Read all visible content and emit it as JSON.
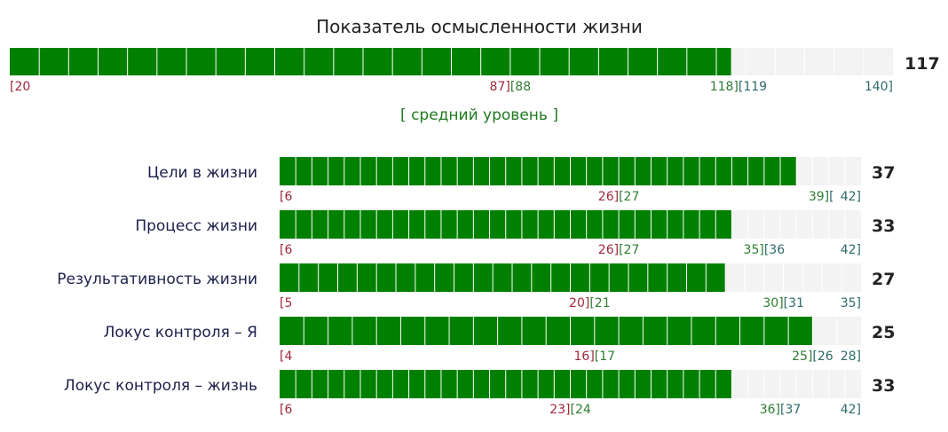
{
  "chart_data": {
    "type": "bar",
    "title": "Показатель осмысленности жизни",
    "colors": {
      "fill": "#008000",
      "track": "#f3f3f3",
      "low_tick": "#a0283c",
      "mid_tick": "#2e7d32",
      "high_tick": "#2e6b6b",
      "level_text": "#1f7a1f"
    },
    "total": {
      "value": 117,
      "min": 20,
      "max": 140,
      "ticks": [
        "[20",
        "87][88",
        "118][119",
        "140]"
      ],
      "level": "[ средний уровень ]"
    },
    "categories": [
      "Цели в жизни",
      "Процесс жизни",
      "Результативность жизни",
      "Локус контроля – Я",
      "Локус контроля – жизнь"
    ],
    "values": [
      37,
      33,
      27,
      25,
      33
    ],
    "scales": [
      {
        "min": 6,
        "max": 42,
        "ticks": [
          "[6",
          "26][27",
          "39][",
          "42]"
        ]
      },
      {
        "min": 6,
        "max": 42,
        "ticks": [
          "[6",
          "26][27",
          "35][36",
          "42]"
        ]
      },
      {
        "min": 5,
        "max": 35,
        "ticks": [
          "[5",
          "20][21",
          "30][31",
          "35]"
        ]
      },
      {
        "min": 4,
        "max": 28,
        "ticks": [
          "[4",
          "16][17",
          "25][26",
          "28]"
        ]
      },
      {
        "min": 6,
        "max": 42,
        "ticks": [
          "[6",
          "23][24",
          "36][37",
          "42]"
        ]
      }
    ]
  }
}
